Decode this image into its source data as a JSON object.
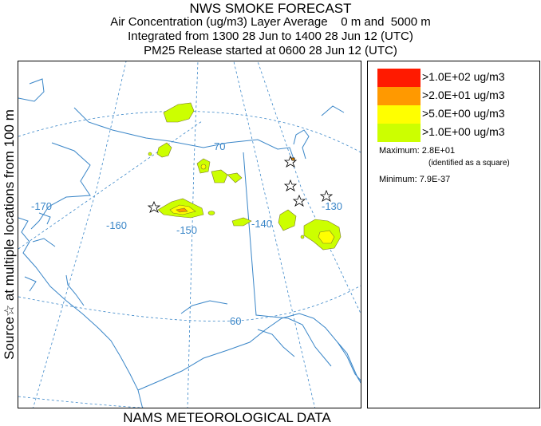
{
  "header": {
    "title": "NWS SMOKE FORECAST",
    "line1": "Air Concentration (ug/m3) Layer Average    0 m and  5000 m",
    "line2": "Integrated from 1300 28 Jun to 1400 28 Jun 12 (UTC)",
    "line3": "PM25 Release started at 0600 28 Jun 12 (UTC)"
  },
  "side_label": "Source☆ at multiple locations from  100 m",
  "footer": "NAMS METEOROLOGICAL DATA",
  "map": {
    "graticule_labels": [
      "-170",
      "-160",
      "-150",
      "-140",
      "-130",
      "70",
      "60"
    ],
    "colors": {
      "graticule": "#3a86c8",
      "coast": "#3a86c8",
      "lat_label": "#3a86c8"
    }
  },
  "legend": {
    "items": [
      {
        "label": ">1.0E+02 ug/m3",
        "color": "#ff1a00"
      },
      {
        "label": ">2.0E+01 ug/m3",
        "color": "#ff9900"
      },
      {
        "label": ">5.0E+00 ug/m3",
        "color": "#ffff00"
      },
      {
        "label": ">1.0E+00 ug/m3",
        "color": "#ccff00"
      }
    ],
    "maximum_label": "Maximum: 2.8E+01",
    "maximum_note": "(identified as a square)",
    "minimum_label": "Minimum: 7.9E-37"
  }
}
